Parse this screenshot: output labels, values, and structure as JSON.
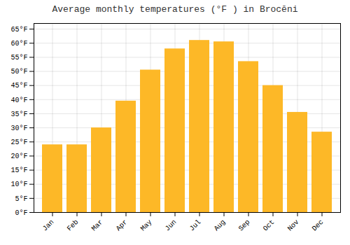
{
  "chart_data": {
    "type": "bar",
    "title": "Average monthly temperatures (°F ) in Brocēni",
    "categories": [
      "Jan",
      "Feb",
      "Mar",
      "Apr",
      "May",
      "Jun",
      "Jul",
      "Aug",
      "Sep",
      "Oct",
      "Nov",
      "Dec"
    ],
    "values": [
      24,
      24,
      30,
      39.5,
      50.5,
      58,
      61,
      60.5,
      53.5,
      45,
      35.5,
      28.5
    ],
    "color": "#FDB827",
    "ylim": [
      0,
      67
    ],
    "yticks": [
      {
        "value": 0,
        "label": "0°F"
      },
      {
        "value": 5,
        "label": "5°F"
      },
      {
        "value": 10,
        "label": "10°F"
      },
      {
        "value": 15,
        "label": "15°F"
      },
      {
        "value": 20,
        "label": "20°F"
      },
      {
        "value": 25,
        "label": "25°F"
      },
      {
        "value": 30,
        "label": "30°F"
      },
      {
        "value": 35,
        "label": "35°F"
      },
      {
        "value": 40,
        "label": "40°F"
      },
      {
        "value": 45,
        "label": "45°F"
      },
      {
        "value": 50,
        "label": "50°F"
      },
      {
        "value": 55,
        "label": "55°F"
      },
      {
        "value": 60,
        "label": "60°F"
      },
      {
        "value": 65,
        "label": "65°F"
      }
    ],
    "grid": true
  }
}
